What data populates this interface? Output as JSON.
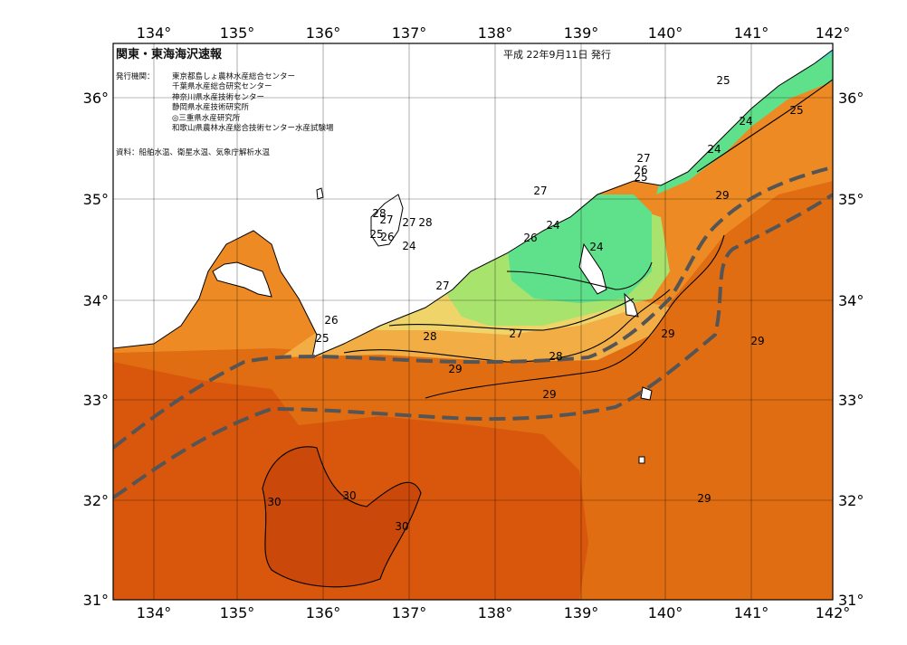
{
  "map": {
    "title": "関東・東海海沢速報",
    "issue_date": "平成 22年9月11日 発行",
    "issuers_label": "発行機関：",
    "issuers": [
      "東京都島しょ農林水産総合センター",
      "千葉県水産総合研究センター",
      "神奈川県水産技術センター",
      "静岡県水産技術研究所",
      "◎三重県水産研究所",
      "和歌山県農林水産総合技術センター水産試験場"
    ],
    "source": "資料：船舶水温、衛星水温、気象庁解析水温",
    "lon_labels": [
      "134°",
      "135°",
      "136°",
      "137°",
      "138°",
      "139°",
      "140°",
      "141°",
      "142°"
    ],
    "lat_labels": [
      "31°",
      "32°",
      "33°",
      "34°",
      "35°",
      "36°"
    ],
    "contour_labels": [
      "25",
      "24",
      "25",
      "24",
      "27",
      "26",
      "25",
      "29",
      "27",
      "24",
      "26",
      "24",
      "28",
      "27",
      "27",
      "28",
      "26",
      "24",
      "25",
      "27",
      "26",
      "28",
      "25",
      "27",
      "29",
      "29",
      "28",
      "29",
      "29",
      "30",
      "30",
      "30",
      "29"
    ],
    "colors": {
      "c30": "#c9480a",
      "c29": "#e06d12",
      "c28": "#ee8a24",
      "c27": "#f2ad44",
      "c26": "#efd46a",
      "c25": "#a8e36e",
      "c24": "#5fe08a",
      "c23": "#4fd6c6",
      "c22": "#55d6f0",
      "land": "#ffffff",
      "kuroshio": "#555555"
    }
  }
}
